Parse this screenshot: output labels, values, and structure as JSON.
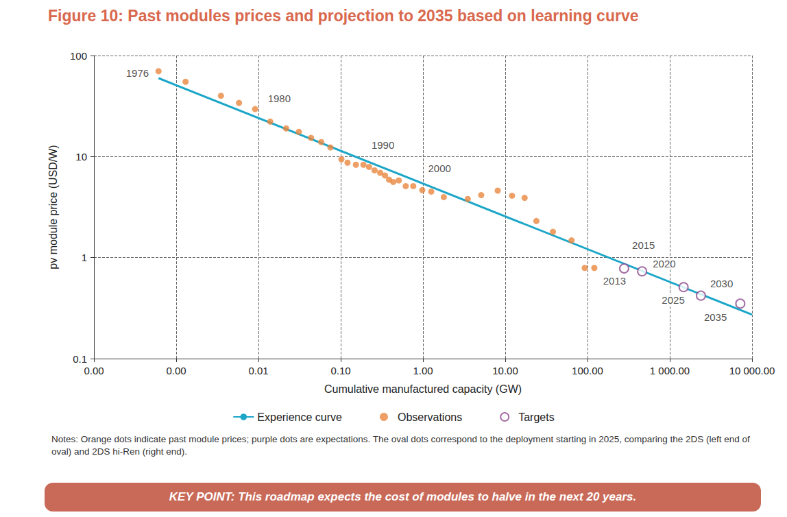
{
  "chart_data": {
    "type": "scatter",
    "title": "Figure 10: Past modules prices and projection to 2035 based on learning curve",
    "x_label": "Cumulative manufactured capacity (GW)",
    "y_label": "pv module price (USD/W)",
    "log": true,
    "grid": true,
    "legend": "bottom",
    "xlim": [
      0.0001,
      10000
    ],
    "xticks": [
      {
        "value": 0.0001,
        "label": "0.00"
      },
      {
        "value": 0.001,
        "label": "0.00"
      },
      0.01,
      {
        "value": 0.1,
        "label": "0.10"
      },
      {
        "value": 1,
        "label": "1.00"
      },
      {
        "value": 10,
        "label": "10.00"
      },
      {
        "value": 100,
        "label": "100.00"
      },
      {
        "value": 1000,
        "label": "1 000.00"
      },
      {
        "value": 10000,
        "label": "10 000.00"
      }
    ],
    "ylim": [
      0.1,
      100
    ],
    "yticks": [
      0.1,
      1,
      10,
      100
    ],
    "series": [
      {
        "name": "Experience curve",
        "type": "line",
        "color": "#1ba6c8",
        "line_style": "solid",
        "x": [
          0.00061,
          10000
        ],
        "values": [
          59.7,
          0.272
        ]
      },
      {
        "name": "Observations",
        "type": "scatter",
        "color": "#e8873f",
        "marker": "circle",
        "x": [
          0.00061,
          0.0013,
          0.0035,
          0.0058,
          0.0091,
          0.0139,
          0.0217,
          0.031,
          0.0436,
          0.058,
          0.075,
          0.102,
          0.121,
          0.153,
          0.189,
          0.221,
          0.258,
          0.302,
          0.345,
          0.387,
          0.435,
          0.508,
          0.617,
          0.762,
          0.98,
          1.26,
          1.79,
          3.5,
          5.1,
          8.1,
          12.1,
          17.2,
          23.9,
          38,
          64,
          92.5,
          121
        ],
        "values": [
          70,
          55,
          40,
          34,
          29.5,
          22.2,
          19,
          17.6,
          15.3,
          13.9,
          12.3,
          9.4,
          8.7,
          8.3,
          8.3,
          7.9,
          7.3,
          6.9,
          6.5,
          5.9,
          5.6,
          5.8,
          5.1,
          5.1,
          4.65,
          4.5,
          3.97,
          3.8,
          4.15,
          4.6,
          4.1,
          3.9,
          2.3,
          1.8,
          1.48,
          0.79,
          0.79
        ]
      },
      {
        "name": "Targets",
        "type": "scatter",
        "color": "#8e4b8e",
        "marker": "open_circle",
        "x": [
          279,
          461,
          1472,
          2390,
          7200
        ],
        "values": [
          0.78,
          0.73,
          0.51,
          0.42,
          0.35
        ]
      }
    ],
    "annotations": [
      {
        "text": "1976",
        "x": 0.000338,
        "y": 67.6
      },
      {
        "text": "1980",
        "x": 0.0179,
        "y": 37.8
      },
      {
        "text": "1990",
        "x": 0.326,
        "y": 13.1
      },
      {
        "text": "2000",
        "x": 1.59,
        "y": 7.65
      },
      {
        "text": "2015",
        "x": 480,
        "y": 1.32
      },
      {
        "text": "2020",
        "x": 857,
        "y": 0.87
      },
      {
        "text": "2013",
        "x": 213,
        "y": 0.59
      },
      {
        "text": "2030",
        "x": 4266,
        "y": 0.55
      },
      {
        "text": "2025",
        "x": 1102,
        "y": 0.38
      },
      {
        "text": "2035",
        "x": 3590,
        "y": 0.256
      }
    ],
    "notes": "Notes: Orange dots indicate past module prices; purple dots are expectations. The oval dots correspond to the deployment starting in 2025, comparing the 2DS (left end of oval) and 2DS hi-Ren (right end).",
    "key_point": "KEY POINT: This roadmap expects the cost of modules to halve in the next 20 years."
  }
}
